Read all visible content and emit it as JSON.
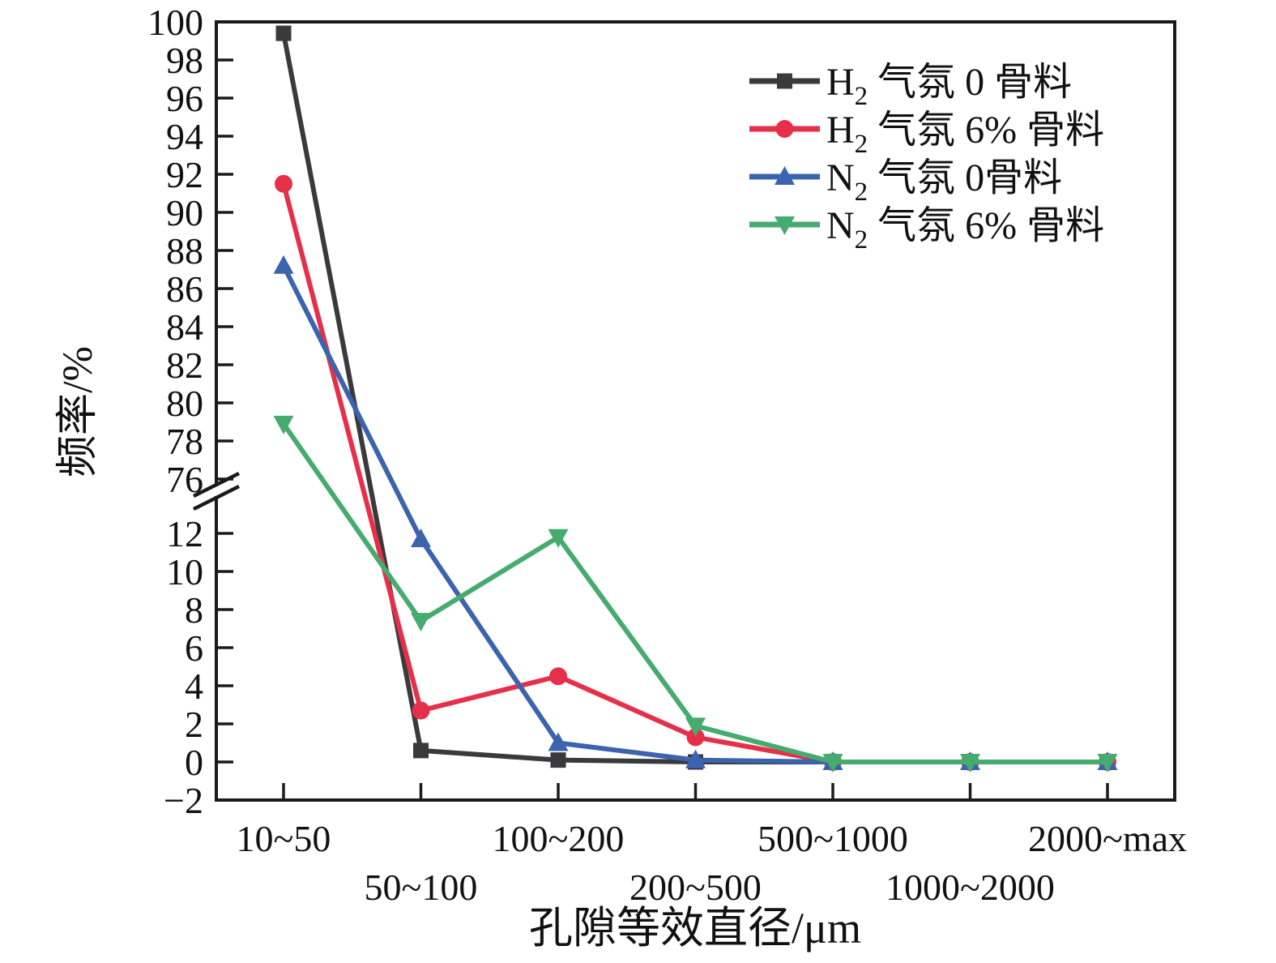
{
  "chart_data": {
    "type": "line",
    "title": "",
    "xlabel": "孔隙等效直径/μm",
    "ylabel": "频率/%",
    "grid": false,
    "legend_position": "top-right-inside",
    "categories": [
      "10~50",
      "50~100",
      "100~200",
      "200~500",
      "500~1000",
      "1000~2000",
      "2000~max"
    ],
    "x_label_rows": [
      0,
      1,
      0,
      1,
      0,
      1,
      0
    ],
    "y_axis": {
      "broken": true,
      "upper_range": [
        76,
        100
      ],
      "lower_range": [
        -2,
        12
      ],
      "tick_step": 2,
      "upper_ticks": [
        100,
        98,
        96,
        94,
        92,
        90,
        88,
        86,
        84,
        82,
        80,
        78,
        76
      ],
      "lower_ticks": [
        12,
        10,
        8,
        6,
        4,
        2,
        0,
        -2
      ]
    },
    "axis_color": "#1a1a1a",
    "series": [
      {
        "name": "H₂ 气氛 0 骨料",
        "label_base": "H",
        "label_sub": "2",
        "label_rest": " 气氛 0 骨料",
        "marker": "square",
        "color": "#3a3a3c",
        "values": [
          99.4,
          0.6,
          0.1,
          0,
          0,
          0,
          0
        ]
      },
      {
        "name": "H₂ 气氛 6% 骨料",
        "label_base": "H",
        "label_sub": "2",
        "label_rest": " 气氛 6% 骨料",
        "marker": "circle",
        "color": "#e6304a",
        "values": [
          91.5,
          2.7,
          4.5,
          1.3,
          0,
          0,
          0
        ]
      },
      {
        "name": "N₂ 气氛 0骨料",
        "label_base": "N",
        "label_sub": "2",
        "label_rest": " 气氛 0骨料",
        "marker": "triangle-up",
        "color": "#3c64ae",
        "values": [
          87.2,
          11.7,
          1.0,
          0.1,
          0,
          0,
          0
        ]
      },
      {
        "name": "N₂ 气氛 6% 骨料",
        "label_base": "N",
        "label_sub": "2",
        "label_rest": " 气氛 6% 骨料",
        "marker": "triangle-down",
        "color": "#45ab6e",
        "values": [
          78.9,
          7.4,
          11.8,
          1.9,
          0,
          0,
          0
        ]
      }
    ]
  }
}
